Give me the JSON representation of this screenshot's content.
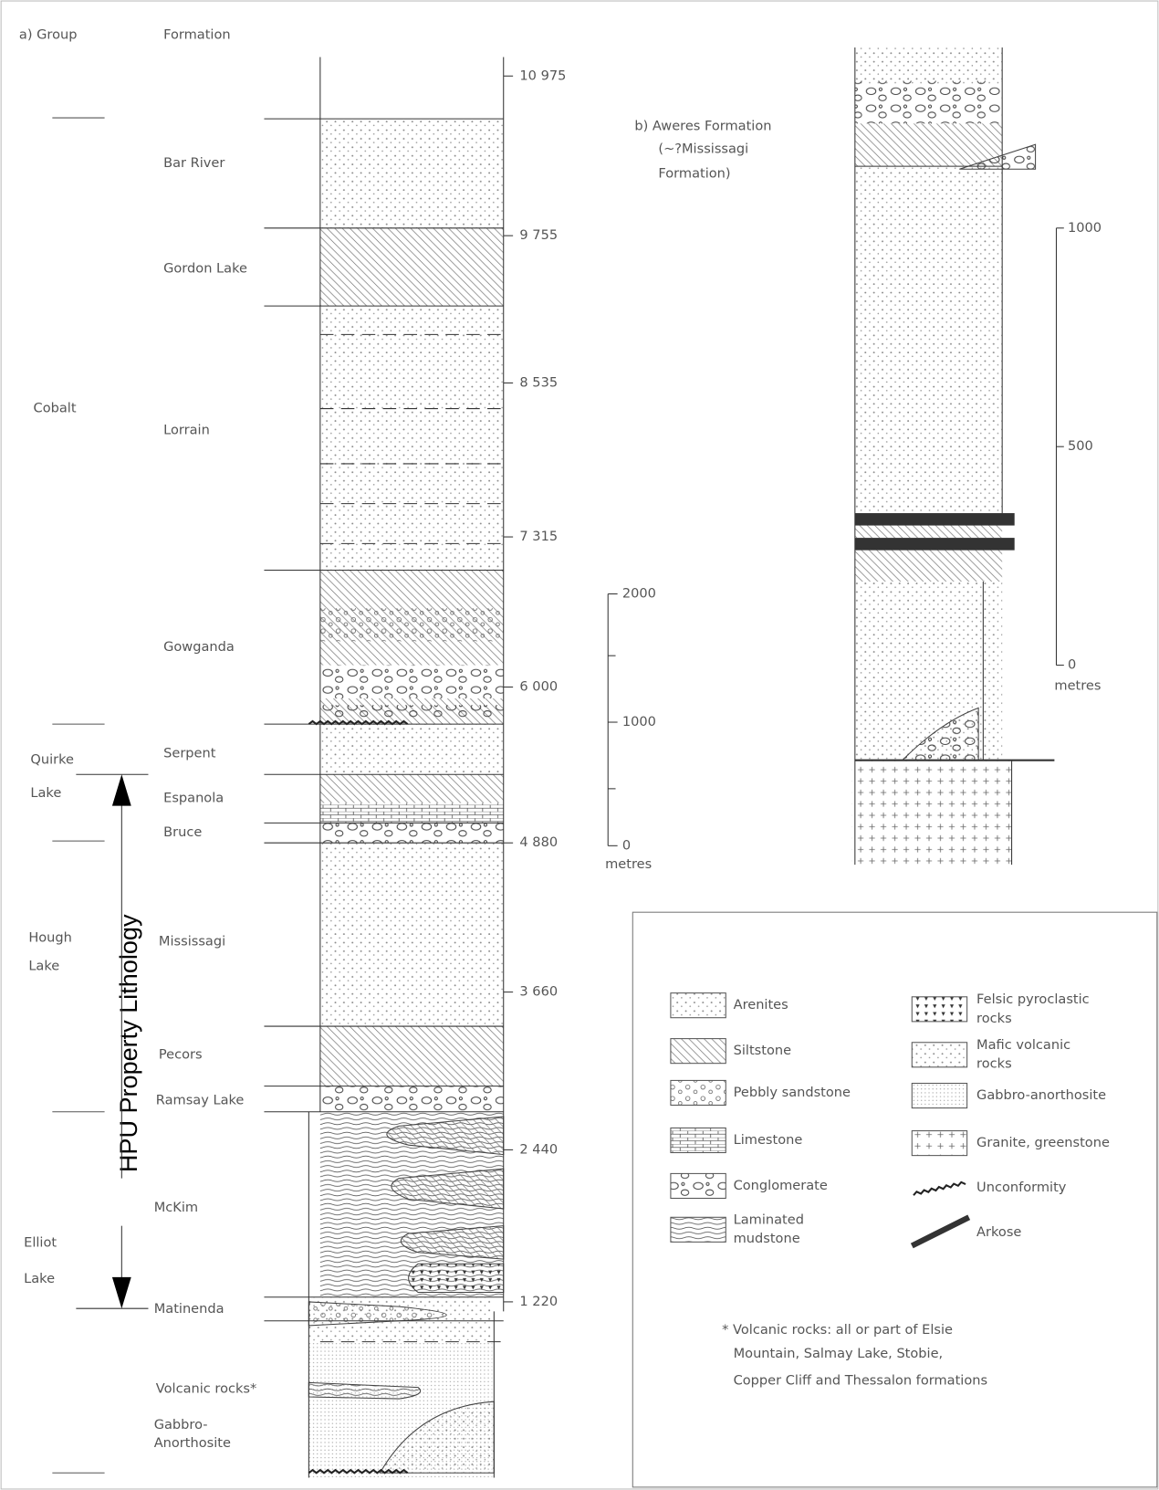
{
  "panel_a": {
    "header": {
      "group": "a) Group",
      "formation": "Formation"
    },
    "groups": [
      [
        "Cobalt"
      ],
      [
        "Quirke",
        "Lake"
      ],
      [
        "Hough",
        "Lake"
      ],
      [
        "Elliot",
        "Lake"
      ]
    ],
    "formations": [
      "Bar River",
      "Gordon Lake",
      "Lorrain",
      "Gowganda",
      "Serpent",
      "Espanola",
      "Bruce",
      "Mississagi",
      "Pecors",
      "Ramsay Lake",
      "McKim",
      "Matinenda",
      "Volcanic rocks*",
      "Gabbro-",
      "Anorthosite"
    ],
    "depths": [
      "10 975",
      "9 755",
      "8 535",
      "7 315",
      "6 000",
      "4 880",
      "3 660",
      "2 440",
      "1 220"
    ],
    "scale": {
      "labels": [
        "2000",
        "1000",
        "0"
      ],
      "unit": "metres"
    },
    "annotation": "HPU Property Lithology"
  },
  "panel_b": {
    "title": [
      "b) Aweres Formation",
      "(~?Mississagi",
      "Formation)"
    ],
    "scale": {
      "labels": [
        "1000",
        "500",
        "0"
      ],
      "unit": "metres"
    }
  },
  "legend": [
    [
      "Arenites"
    ],
    [
      "Siltstone"
    ],
    [
      "Pebbly sandstone"
    ],
    [
      "Limestone"
    ],
    [
      "Conglomerate"
    ],
    [
      "Laminated",
      "mudstone"
    ],
    [
      "Felsic pyroclastic",
      "rocks"
    ],
    [
      "Mafic volcanic",
      "rocks"
    ],
    [
      "Gabbro-anorthosite"
    ],
    [
      "Granite, greenstone"
    ],
    [
      "Unconformity"
    ],
    [
      "Arkose"
    ]
  ],
  "footnote": [
    "* Volcanic rocks: all or part of Elsie",
    "Mountain, Salmay Lake, Stobie,",
    "Copper Cliff and Thessalon formations"
  ]
}
